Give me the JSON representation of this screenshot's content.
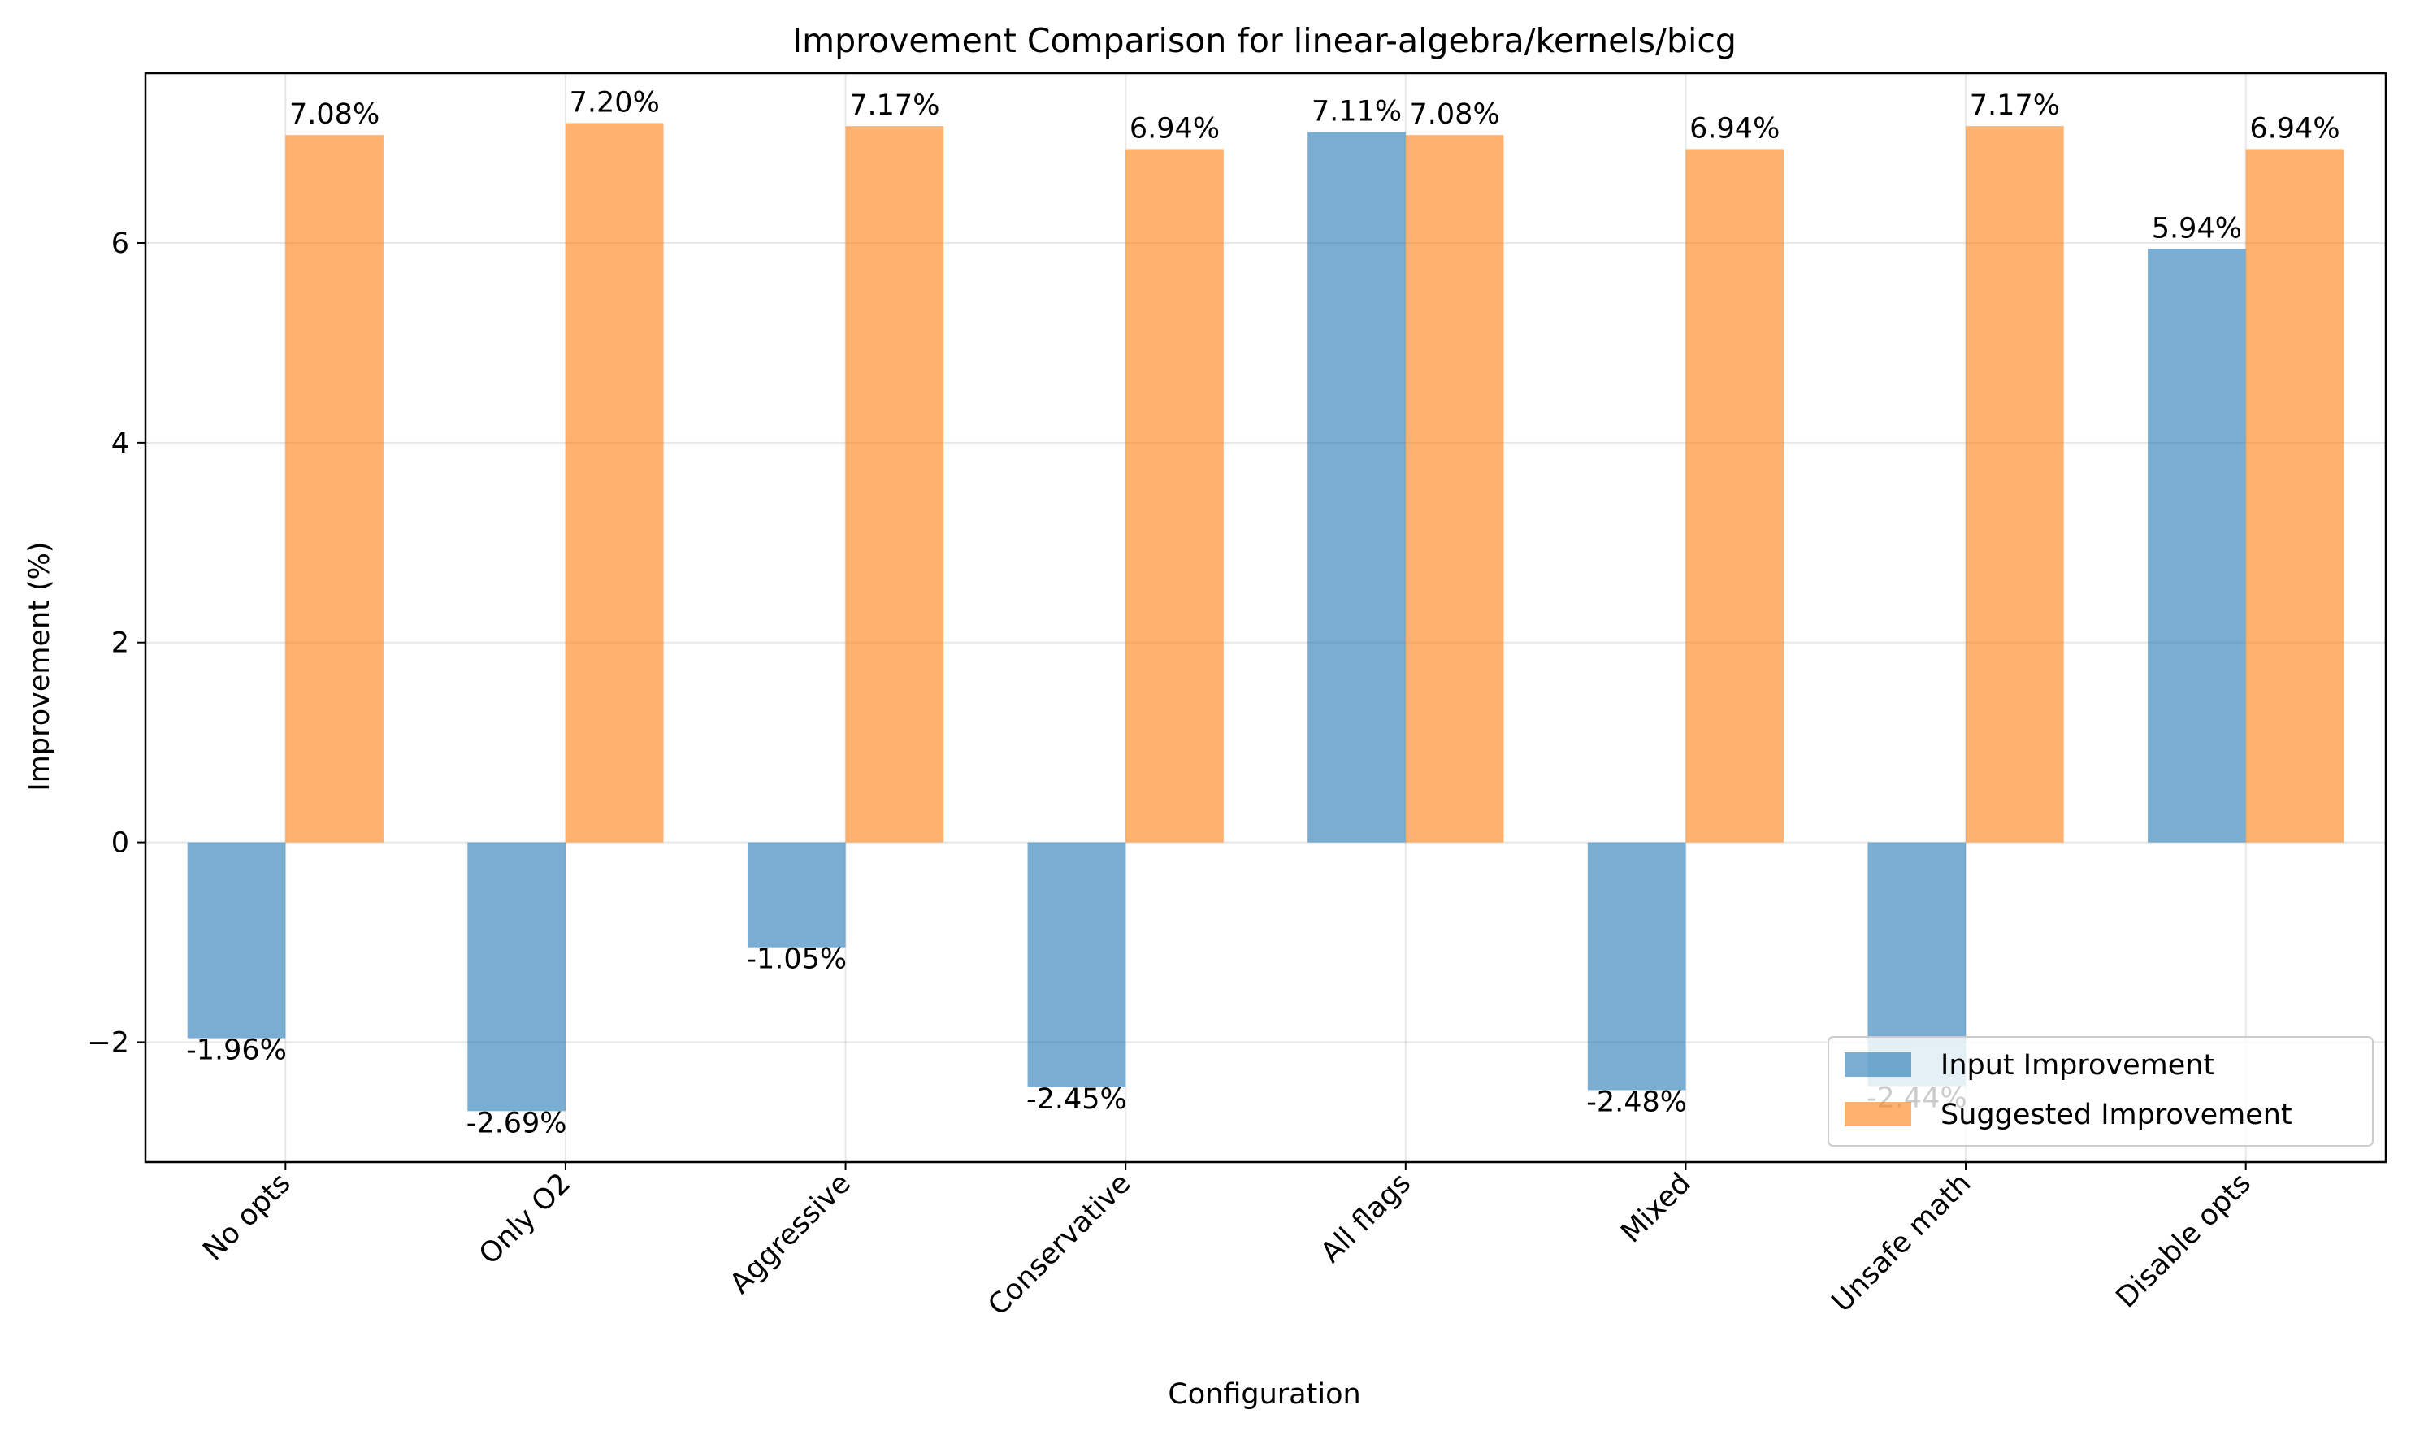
{
  "chart_data": {
    "type": "bar",
    "title": "Improvement Comparison for linear-algebra/kernels/bicg",
    "xlabel": "Configuration",
    "ylabel": "Improvement (%)",
    "categories": [
      "No opts",
      "Only O2",
      "Aggressive",
      "Conservative",
      "All flags",
      "Mixed",
      "Unsafe math",
      "Disable opts"
    ],
    "series": [
      {
        "name": "Input Improvement",
        "color": "#1f77b4",
        "values": [
          -1.96,
          -2.69,
          -1.05,
          -2.45,
          7.11,
          -2.48,
          -2.44,
          5.94
        ],
        "labels": [
          "-1.96%",
          "-2.69%",
          "-1.05%",
          "-2.45%",
          "7.11%",
          "-2.48%",
          "-2.44%",
          "5.94%"
        ]
      },
      {
        "name": "Suggested Improvement",
        "color": "#ff7f0e",
        "values": [
          7.08,
          7.2,
          7.17,
          6.94,
          7.08,
          6.94,
          7.17,
          6.94
        ],
        "labels": [
          "7.08%",
          "7.20%",
          "7.17%",
          "6.94%",
          "7.08%",
          "6.94%",
          "7.17%",
          "6.94%"
        ]
      }
    ],
    "ylim": [
      -3.2,
      7.7
    ],
    "yticks": [
      -2,
      0,
      2,
      4,
      6
    ],
    "ytick_labels": [
      "−2",
      "0",
      "2",
      "4",
      "6"
    ],
    "grid": true,
    "legend_position": "lower-right",
    "bar_alpha": 0.6
  }
}
